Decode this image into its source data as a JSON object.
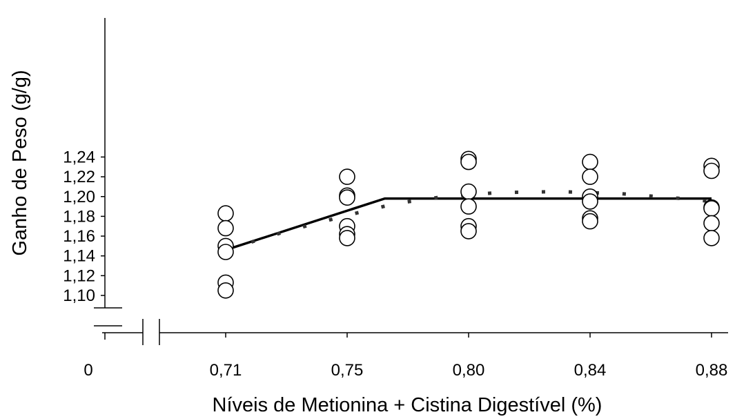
{
  "chart_data": {
    "type": "scatter",
    "xlabel": "Níveis de Metionina + Cistina Digestível (%)",
    "ylabel": "Ganho de Peso (g/g)",
    "x_tick_labels": [
      "0",
      "0,71",
      "0,75",
      "0,80",
      "0,84",
      "0,88"
    ],
    "y_tick_labels": [
      "1,10",
      "1,12",
      "1,14",
      "1,16",
      "1,18",
      "1,20",
      "1,22",
      "1,24"
    ],
    "ylim": [
      1.1,
      1.24
    ],
    "x": [
      0.71,
      0.75,
      0.8,
      0.84,
      0.88
    ],
    "axis_break": true,
    "grid": false,
    "series": [
      {
        "type": "scatter",
        "marker": "open-circle",
        "points": [
          {
            "x": 0.71,
            "y": 1.183
          },
          {
            "x": 0.71,
            "y": 1.168
          },
          {
            "x": 0.71,
            "y": 1.15
          },
          {
            "x": 0.71,
            "y": 1.144
          },
          {
            "x": 0.71,
            "y": 1.113
          },
          {
            "x": 0.71,
            "y": 1.105
          },
          {
            "x": 0.75,
            "y": 1.22
          },
          {
            "x": 0.75,
            "y": 1.201
          },
          {
            "x": 0.75,
            "y": 1.199
          },
          {
            "x": 0.75,
            "y": 1.17
          },
          {
            "x": 0.75,
            "y": 1.162
          },
          {
            "x": 0.75,
            "y": 1.158
          },
          {
            "x": 0.8,
            "y": 1.238
          },
          {
            "x": 0.8,
            "y": 1.235
          },
          {
            "x": 0.8,
            "y": 1.205
          },
          {
            "x": 0.8,
            "y": 1.19
          },
          {
            "x": 0.8,
            "y": 1.17
          },
          {
            "x": 0.8,
            "y": 1.165
          },
          {
            "x": 0.84,
            "y": 1.235
          },
          {
            "x": 0.84,
            "y": 1.22
          },
          {
            "x": 0.84,
            "y": 1.2
          },
          {
            "x": 0.84,
            "y": 1.195
          },
          {
            "x": 0.84,
            "y": 1.178
          },
          {
            "x": 0.84,
            "y": 1.175
          },
          {
            "x": 0.88,
            "y": 1.231
          },
          {
            "x": 0.88,
            "y": 1.226
          },
          {
            "x": 0.88,
            "y": 1.189
          },
          {
            "x": 0.88,
            "y": 1.188
          },
          {
            "x": 0.88,
            "y": 1.173
          },
          {
            "x": 0.88,
            "y": 1.158
          }
        ]
      },
      {
        "type": "line",
        "style": "solid",
        "points": [
          {
            "x": 0.71,
            "y": 1.146
          },
          {
            "x": 0.7655,
            "y": 1.198
          },
          {
            "x": 0.88,
            "y": 1.198
          }
        ]
      },
      {
        "type": "line",
        "style": "dashed",
        "points": [
          {
            "x": 0.71,
            "y": 1.146
          },
          {
            "x": 0.73,
            "y": 1.165
          },
          {
            "x": 0.75,
            "y": 1.181
          },
          {
            "x": 0.77,
            "y": 1.193
          },
          {
            "x": 0.79,
            "y": 1.2
          },
          {
            "x": 0.81,
            "y": 1.204
          },
          {
            "x": 0.83,
            "y": 1.205
          },
          {
            "x": 0.85,
            "y": 1.203
          },
          {
            "x": 0.87,
            "y": 1.198
          },
          {
            "x": 0.88,
            "y": 1.195
          }
        ]
      }
    ]
  }
}
